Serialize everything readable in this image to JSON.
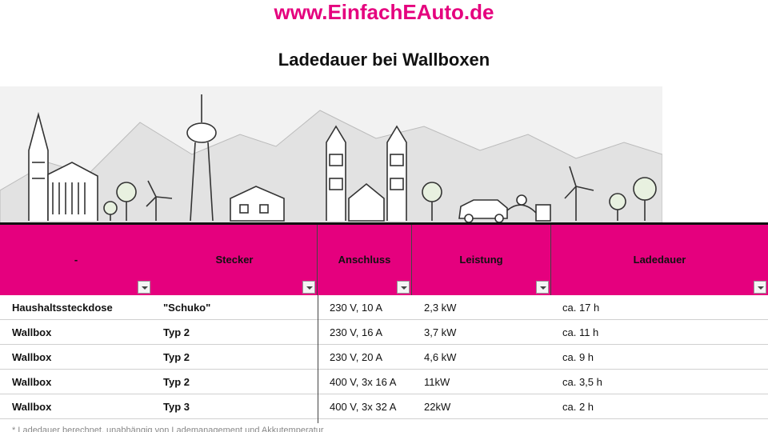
{
  "header": {
    "site_url": "www.EinfachEAuto.de",
    "title": "Ladedauer bei Wallboxen"
  },
  "table": {
    "columns": [
      "-",
      "Stecker",
      "Anschluss",
      "Leistung",
      "Ladedauer"
    ],
    "rows": [
      {
        "type": "Haushaltssteckdose",
        "plug": "\"Schuko\"",
        "connection": "230 V, 10 A",
        "power": "2,3 kW",
        "duration": "ca. 17 h"
      },
      {
        "type": "Wallbox",
        "plug": "Typ 2",
        "connection": "230 V, 16 A",
        "power": "3,7 kW",
        "duration": "ca. 11 h"
      },
      {
        "type": "Wallbox",
        "plug": "Typ 2",
        "connection": "230 V, 20 A",
        "power": "4,6 kW",
        "duration": "ca. 9 h"
      },
      {
        "type": "Wallbox",
        "plug": "Typ 2",
        "connection": "400 V, 3x 16 A",
        "power": "11kW",
        "duration": "ca. 3,5 h"
      },
      {
        "type": "Wallbox",
        "plug": "Typ 3",
        "connection": "400 V, 3x 32 A",
        "power": "22kW",
        "duration": "ca. 2 h"
      }
    ]
  },
  "footnote": "* Ladedauer berechnet, unabhängig von Lademanagement und Akkutemperatur",
  "colors": {
    "accent": "#e5007e",
    "text": "#111111"
  }
}
